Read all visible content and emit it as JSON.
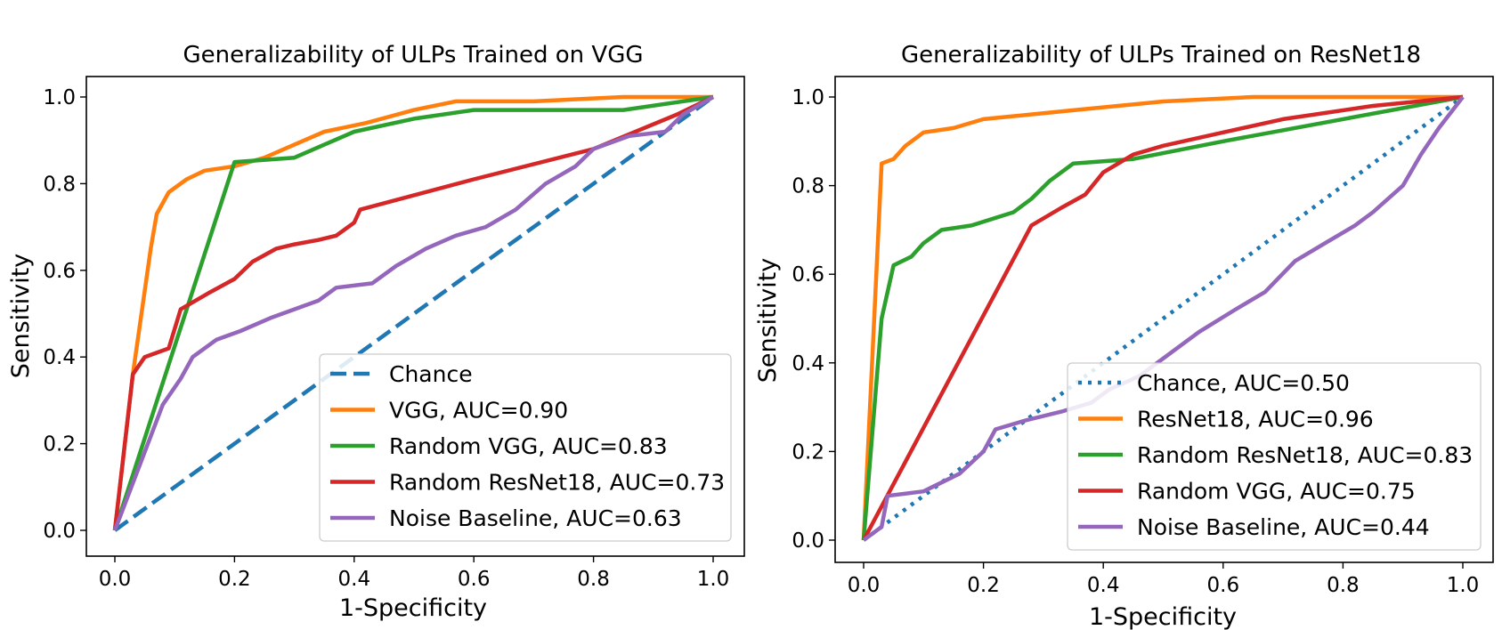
{
  "colors": {
    "blue": "#1f77b4",
    "orange": "#ff7f0e",
    "green": "#2ca02c",
    "red": "#d62728",
    "purple": "#9467bd"
  },
  "chart_data": [
    {
      "type": "line",
      "title": "Generalizability of ULPs Trained on VGG",
      "xlabel": "1-Specificity",
      "ylabel": "Sensitivity",
      "xlim": [
        0,
        1
      ],
      "ylim": [
        0,
        1
      ],
      "xticks": [
        "0.0",
        "0.2",
        "0.4",
        "0.6",
        "0.8",
        "1.0"
      ],
      "yticks": [
        "0.0",
        "0.2",
        "0.4",
        "0.6",
        "0.8",
        "1.0"
      ],
      "grid": false,
      "legend_position": "lower-right",
      "series": [
        {
          "name": "Chance",
          "color": "#1f77b4",
          "style": "dashed",
          "points": [
            [
              0,
              0
            ],
            [
              1,
              1
            ]
          ]
        },
        {
          "name": "VGG, AUC=0.90",
          "color": "#ff7f0e",
          "style": "solid",
          "points": [
            [
              0,
              0
            ],
            [
              0.03,
              0.36
            ],
            [
              0.06,
              0.65
            ],
            [
              0.07,
              0.73
            ],
            [
              0.09,
              0.78
            ],
            [
              0.12,
              0.81
            ],
            [
              0.15,
              0.83
            ],
            [
              0.2,
              0.84
            ],
            [
              0.25,
              0.86
            ],
            [
              0.3,
              0.89
            ],
            [
              0.35,
              0.92
            ],
            [
              0.42,
              0.94
            ],
            [
              0.5,
              0.97
            ],
            [
              0.57,
              0.99
            ],
            [
              0.7,
              0.99
            ],
            [
              0.85,
              1.0
            ],
            [
              1,
              1
            ]
          ]
        },
        {
          "name": "Random VGG, AUC=0.83",
          "color": "#2ca02c",
          "style": "solid",
          "points": [
            [
              0,
              0
            ],
            [
              0.2,
              0.85
            ],
            [
              0.3,
              0.86
            ],
            [
              0.35,
              0.89
            ],
            [
              0.4,
              0.92
            ],
            [
              0.5,
              0.95
            ],
            [
              0.6,
              0.97
            ],
            [
              0.85,
              0.97
            ],
            [
              1,
              1
            ]
          ]
        },
        {
          "name": "Random ResNet18, AUC=0.73",
          "color": "#d62728",
          "style": "solid",
          "points": [
            [
              0,
              0
            ],
            [
              0.03,
              0.36
            ],
            [
              0.05,
              0.4
            ],
            [
              0.09,
              0.42
            ],
            [
              0.11,
              0.51
            ],
            [
              0.16,
              0.55
            ],
            [
              0.2,
              0.58
            ],
            [
              0.23,
              0.62
            ],
            [
              0.27,
              0.65
            ],
            [
              0.3,
              0.66
            ],
            [
              0.34,
              0.67
            ],
            [
              0.37,
              0.68
            ],
            [
              0.4,
              0.71
            ],
            [
              0.41,
              0.74
            ],
            [
              0.6,
              0.81
            ],
            [
              0.8,
              0.88
            ],
            [
              0.94,
              0.96
            ],
            [
              1,
              1
            ]
          ]
        },
        {
          "name": "Noise Baseline, AUC=0.63",
          "color": "#9467bd",
          "style": "solid",
          "points": [
            [
              0,
              0
            ],
            [
              0.08,
              0.29
            ],
            [
              0.11,
              0.35
            ],
            [
              0.13,
              0.4
            ],
            [
              0.17,
              0.44
            ],
            [
              0.21,
              0.46
            ],
            [
              0.26,
              0.49
            ],
            [
              0.3,
              0.51
            ],
            [
              0.34,
              0.53
            ],
            [
              0.37,
              0.56
            ],
            [
              0.43,
              0.57
            ],
            [
              0.47,
              0.61
            ],
            [
              0.52,
              0.65
            ],
            [
              0.57,
              0.68
            ],
            [
              0.62,
              0.7
            ],
            [
              0.67,
              0.74
            ],
            [
              0.72,
              0.8
            ],
            [
              0.77,
              0.84
            ],
            [
              0.8,
              0.88
            ],
            [
              0.86,
              0.91
            ],
            [
              0.92,
              0.92
            ],
            [
              0.95,
              0.96
            ],
            [
              1,
              1
            ]
          ]
        }
      ]
    },
    {
      "type": "line",
      "title": "Generalizability of ULPs Trained on ResNet18",
      "xlabel": "1-Specificity",
      "ylabel": "Sensitivity",
      "xlim": [
        0,
        1
      ],
      "ylim": [
        0,
        1
      ],
      "xticks": [
        "0.0",
        "0.2",
        "0.4",
        "0.6",
        "0.8",
        "1.0"
      ],
      "yticks": [
        "0.0",
        "0.2",
        "0.4",
        "0.6",
        "0.8",
        "1.0"
      ],
      "grid": false,
      "legend_position": "lower-right",
      "series": [
        {
          "name": "Chance, AUC=0.50",
          "color": "#1f77b4",
          "style": "dotted",
          "points": [
            [
              0,
              0
            ],
            [
              1,
              1
            ]
          ]
        },
        {
          "name": "ResNet18, AUC=0.96",
          "color": "#ff7f0e",
          "style": "solid",
          "points": [
            [
              0,
              0
            ],
            [
              0.03,
              0.85
            ],
            [
              0.05,
              0.86
            ],
            [
              0.07,
              0.89
            ],
            [
              0.1,
              0.92
            ],
            [
              0.15,
              0.93
            ],
            [
              0.2,
              0.95
            ],
            [
              0.35,
              0.97
            ],
            [
              0.5,
              0.99
            ],
            [
              0.65,
              1.0
            ],
            [
              1,
              1
            ]
          ]
        },
        {
          "name": "Random ResNet18, AUC=0.83",
          "color": "#2ca02c",
          "style": "solid",
          "points": [
            [
              0,
              0
            ],
            [
              0.03,
              0.5
            ],
            [
              0.05,
              0.62
            ],
            [
              0.08,
              0.64
            ],
            [
              0.1,
              0.67
            ],
            [
              0.13,
              0.7
            ],
            [
              0.18,
              0.71
            ],
            [
              0.25,
              0.74
            ],
            [
              0.28,
              0.77
            ],
            [
              0.31,
              0.81
            ],
            [
              0.35,
              0.85
            ],
            [
              0.45,
              0.86
            ],
            [
              0.6,
              0.9
            ],
            [
              0.8,
              0.95
            ],
            [
              1,
              1
            ]
          ]
        },
        {
          "name": "Random VGG, AUC=0.75",
          "color": "#d62728",
          "style": "solid",
          "points": [
            [
              0,
              0
            ],
            [
              0.28,
              0.71
            ],
            [
              0.33,
              0.75
            ],
            [
              0.37,
              0.78
            ],
            [
              0.4,
              0.83
            ],
            [
              0.45,
              0.87
            ],
            [
              0.5,
              0.89
            ],
            [
              0.6,
              0.92
            ],
            [
              0.7,
              0.95
            ],
            [
              0.85,
              0.98
            ],
            [
              1,
              1
            ]
          ]
        },
        {
          "name": "Noise Baseline, AUC=0.44",
          "color": "#9467bd",
          "style": "solid",
          "points": [
            [
              0,
              0
            ],
            [
              0.03,
              0.03
            ],
            [
              0.04,
              0.1
            ],
            [
              0.1,
              0.11
            ],
            [
              0.16,
              0.15
            ],
            [
              0.2,
              0.2
            ],
            [
              0.22,
              0.25
            ],
            [
              0.27,
              0.27
            ],
            [
              0.33,
              0.29
            ],
            [
              0.38,
              0.31
            ],
            [
              0.41,
              0.34
            ],
            [
              0.46,
              0.37
            ],
            [
              0.5,
              0.41
            ],
            [
              0.56,
              0.47
            ],
            [
              0.62,
              0.52
            ],
            [
              0.67,
              0.56
            ],
            [
              0.72,
              0.63
            ],
            [
              0.77,
              0.67
            ],
            [
              0.82,
              0.71
            ],
            [
              0.85,
              0.74
            ],
            [
              0.9,
              0.8
            ],
            [
              0.93,
              0.87
            ],
            [
              0.96,
              0.93
            ],
            [
              1,
              1
            ]
          ]
        }
      ]
    }
  ]
}
